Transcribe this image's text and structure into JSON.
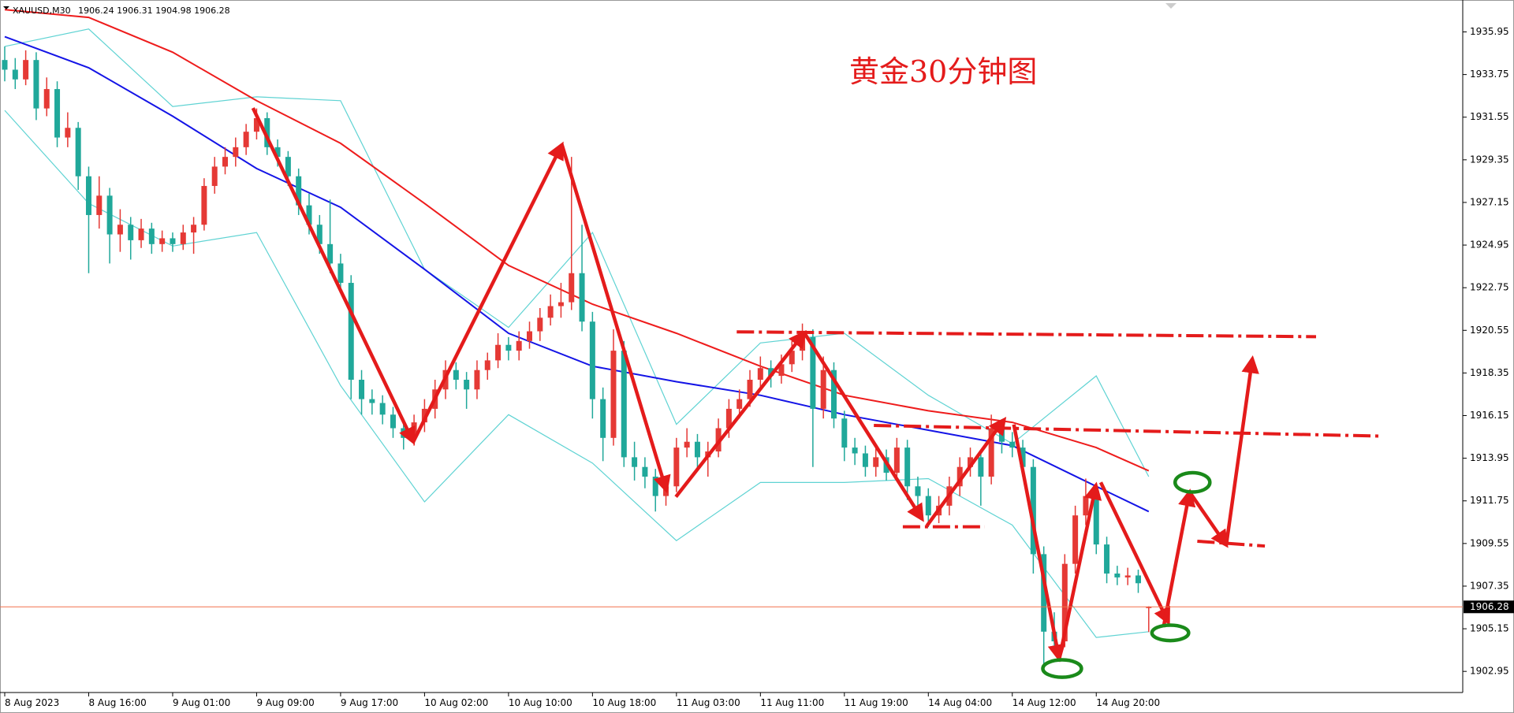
{
  "chart_data": {
    "type": "candlestick",
    "header": {
      "symbol": "XAUUSD,M30",
      "ohlc": [
        1906.24,
        1906.31,
        1904.98,
        1906.28
      ]
    },
    "title": "黄金30分钟图",
    "up_color": "#e53935",
    "down_color": "#20a89a",
    "ylim": [
      1901.86,
      1937.19
    ],
    "yticks": [
      1935.95,
      1933.75,
      1931.55,
      1929.35,
      1927.15,
      1924.95,
      1922.75,
      1920.55,
      1918.35,
      1916.15,
      1913.95,
      1911.75,
      1909.55,
      1907.35,
      1905.15,
      1902.95
    ],
    "x_labels": [
      "8 Aug 2023",
      "8 Aug 16:00",
      "9 Aug 01:00",
      "9 Aug 09:00",
      "9 Aug 17:00",
      "10 Aug 02:00",
      "10 Aug 10:00",
      "10 Aug 18:00",
      "11 Aug 03:00",
      "11 Aug 11:00",
      "11 Aug 19:00",
      "14 Aug 04:00",
      "14 Aug 12:00",
      "14 Aug 20:00"
    ],
    "current_price": 1906.28,
    "candles": [
      [
        1934.5,
        1935.2,
        1933.4,
        1934.0
      ],
      [
        1934.0,
        1934.6,
        1933.0,
        1933.5
      ],
      [
        1933.5,
        1935.0,
        1933.2,
        1934.5
      ],
      [
        1934.5,
        1934.9,
        1931.4,
        1932.0
      ],
      [
        1932.0,
        1933.6,
        1931.6,
        1933.0
      ],
      [
        1933.0,
        1933.4,
        1930.0,
        1930.5
      ],
      [
        1930.5,
        1931.8,
        1930.0,
        1931.0
      ],
      [
        1931.0,
        1931.3,
        1927.8,
        1928.5
      ],
      [
        1928.5,
        1929.0,
        1923.5,
        1926.5
      ],
      [
        1926.5,
        1928.5,
        1925.8,
        1927.5
      ],
      [
        1927.5,
        1927.9,
        1924.0,
        1925.5
      ],
      [
        1925.5,
        1926.8,
        1924.6,
        1926.0
      ],
      [
        1926.0,
        1926.4,
        1924.2,
        1925.2
      ],
      [
        1925.2,
        1926.3,
        1924.8,
        1925.8
      ],
      [
        1925.8,
        1926.1,
        1924.5,
        1925.0
      ],
      [
        1925.0,
        1925.7,
        1924.6,
        1925.3
      ],
      [
        1925.3,
        1925.6,
        1924.6,
        1925.0
      ],
      [
        1925.0,
        1926.0,
        1924.7,
        1925.6
      ],
      [
        1925.6,
        1926.4,
        1924.5,
        1926.0
      ],
      [
        1926.0,
        1928.4,
        1925.7,
        1928.0
      ],
      [
        1928.0,
        1929.5,
        1927.6,
        1929.0
      ],
      [
        1929.0,
        1930.0,
        1928.6,
        1929.5
      ],
      [
        1929.5,
        1930.5,
        1929.0,
        1930.0
      ],
      [
        1930.0,
        1931.2,
        1929.6,
        1930.8
      ],
      [
        1930.8,
        1932.0,
        1930.4,
        1931.5
      ],
      [
        1931.5,
        1931.8,
        1929.6,
        1930.0
      ],
      [
        1930.0,
        1930.4,
        1929.0,
        1929.5
      ],
      [
        1929.5,
        1929.8,
        1928.0,
        1928.5
      ],
      [
        1928.5,
        1928.9,
        1926.5,
        1927.0
      ],
      [
        1927.0,
        1927.6,
        1925.5,
        1926.0
      ],
      [
        1926.0,
        1926.5,
        1924.5,
        1925.0
      ],
      [
        1925.0,
        1927.3,
        1923.5,
        1924.0
      ],
      [
        1924.0,
        1924.5,
        1922.5,
        1923.0
      ],
      [
        1923.0,
        1923.4,
        1917.0,
        1918.0
      ],
      [
        1918.0,
        1918.5,
        1916.2,
        1917.0
      ],
      [
        1917.0,
        1917.5,
        1916.2,
        1916.8
      ],
      [
        1916.8,
        1917.2,
        1915.7,
        1916.2
      ],
      [
        1916.2,
        1916.6,
        1915.0,
        1915.5
      ],
      [
        1915.5,
        1916.0,
        1914.4,
        1915.0
      ],
      [
        1915.0,
        1916.2,
        1914.6,
        1915.8
      ],
      [
        1915.8,
        1917.0,
        1915.3,
        1916.5
      ],
      [
        1916.5,
        1918.0,
        1916.0,
        1917.5
      ],
      [
        1917.5,
        1919.0,
        1917.0,
        1918.5
      ],
      [
        1918.5,
        1918.9,
        1917.5,
        1918.0
      ],
      [
        1918.0,
        1918.4,
        1916.5,
        1917.5
      ],
      [
        1917.5,
        1919.0,
        1917.0,
        1918.5
      ],
      [
        1918.5,
        1919.4,
        1918.0,
        1919.0
      ],
      [
        1919.0,
        1920.4,
        1918.6,
        1919.8
      ],
      [
        1919.8,
        1920.2,
        1919.0,
        1919.5
      ],
      [
        1919.5,
        1920.5,
        1919.0,
        1920.0
      ],
      [
        1920.0,
        1921.0,
        1919.6,
        1920.5
      ],
      [
        1920.5,
        1921.7,
        1920.0,
        1921.2
      ],
      [
        1921.2,
        1922.4,
        1920.8,
        1921.8
      ],
      [
        1921.8,
        1923.0,
        1921.2,
        1922.0
      ],
      [
        1922.0,
        1929.5,
        1921.6,
        1923.5
      ],
      [
        1923.5,
        1926.0,
        1920.5,
        1921.0
      ],
      [
        1921.0,
        1921.5,
        1916.0,
        1917.0
      ],
      [
        1917.0,
        1917.6,
        1913.8,
        1915.0
      ],
      [
        1915.0,
        1920.6,
        1914.6,
        1919.5
      ],
      [
        1919.5,
        1920.0,
        1913.5,
        1914.0
      ],
      [
        1914.0,
        1914.8,
        1912.8,
        1913.5
      ],
      [
        1913.5,
        1914.0,
        1912.4,
        1913.0
      ],
      [
        1913.0,
        1913.4,
        1911.2,
        1912.0
      ],
      [
        1912.0,
        1913.0,
        1911.5,
        1912.5
      ],
      [
        1912.5,
        1915.0,
        1912.2,
        1914.5
      ],
      [
        1914.5,
        1915.5,
        1914.0,
        1914.8
      ],
      [
        1914.8,
        1915.2,
        1913.4,
        1914.0
      ],
      [
        1914.0,
        1914.8,
        1913.0,
        1914.3
      ],
      [
        1914.3,
        1916.0,
        1914.0,
        1915.5
      ],
      [
        1915.5,
        1917.0,
        1915.0,
        1916.5
      ],
      [
        1916.5,
        1917.5,
        1916.0,
        1917.0
      ],
      [
        1917.0,
        1918.5,
        1916.6,
        1918.0
      ],
      [
        1918.0,
        1919.2,
        1917.5,
        1918.6
      ],
      [
        1918.6,
        1919.0,
        1917.6,
        1918.2
      ],
      [
        1918.2,
        1919.3,
        1917.8,
        1918.8
      ],
      [
        1918.8,
        1920.0,
        1918.4,
        1919.5
      ],
      [
        1919.5,
        1920.9,
        1919.0,
        1920.2
      ],
      [
        1920.2,
        1920.6,
        1913.5,
        1916.5
      ],
      [
        1916.5,
        1919.2,
        1916.0,
        1918.5
      ],
      [
        1918.5,
        1918.9,
        1915.5,
        1916.0
      ],
      [
        1916.0,
        1916.4,
        1913.8,
        1914.5
      ],
      [
        1914.5,
        1915.0,
        1913.6,
        1914.2
      ],
      [
        1914.2,
        1914.6,
        1913.0,
        1913.5
      ],
      [
        1913.5,
        1914.5,
        1913.0,
        1914.0
      ],
      [
        1914.0,
        1914.4,
        1912.8,
        1913.2
      ],
      [
        1913.2,
        1915.0,
        1912.8,
        1914.5
      ],
      [
        1914.5,
        1914.9,
        1911.8,
        1912.5
      ],
      [
        1912.5,
        1913.0,
        1911.4,
        1912.0
      ],
      [
        1912.0,
        1912.4,
        1910.4,
        1911.0
      ],
      [
        1911.0,
        1912.0,
        1910.6,
        1911.5
      ],
      [
        1911.5,
        1913.0,
        1911.0,
        1912.5
      ],
      [
        1912.5,
        1914.0,
        1912.0,
        1913.5
      ],
      [
        1913.5,
        1914.5,
        1913.0,
        1914.0
      ],
      [
        1914.0,
        1914.4,
        1911.5,
        1913.0
      ],
      [
        1913.0,
        1916.2,
        1912.6,
        1915.5
      ],
      [
        1915.5,
        1915.9,
        1914.2,
        1914.8
      ],
      [
        1914.8,
        1915.3,
        1914.0,
        1914.5
      ],
      [
        1914.5,
        1914.9,
        1913.0,
        1913.5
      ],
      [
        1913.5,
        1913.9,
        1908.0,
        1909.0
      ],
      [
        1909.0,
        1909.4,
        1903.3,
        1905.0
      ],
      [
        1905.0,
        1906.0,
        1904.0,
        1904.5
      ],
      [
        1904.5,
        1909.0,
        1904.2,
        1908.5
      ],
      [
        1908.5,
        1911.5,
        1908.0,
        1911.0
      ],
      [
        1911.0,
        1912.9,
        1910.5,
        1912.0
      ],
      [
        1912.0,
        1912.4,
        1909.0,
        1909.5
      ],
      [
        1909.5,
        1909.9,
        1907.5,
        1908.0
      ],
      [
        1908.0,
        1908.4,
        1907.4,
        1907.8
      ],
      [
        1907.8,
        1908.3,
        1907.4,
        1907.9
      ],
      [
        1907.9,
        1908.2,
        1907.0,
        1907.5
      ],
      [
        1906.24,
        1906.31,
        1904.98,
        1906.28
      ]
    ],
    "lines": [
      {
        "color": "#5fd3d3",
        "x": [
          0,
          8,
          16,
          24,
          32,
          40,
          48,
          56,
          64,
          72,
          80,
          88,
          96,
          104,
          109
        ],
        "values": [
          1935.2,
          1936.1,
          1932.1,
          1932.6,
          1932.4,
          1923.7,
          1920.7,
          1925.6,
          1915.7,
          1919.9,
          1920.4,
          1917.2,
          1914.7,
          1918.2,
          1913.0
        ]
      },
      {
        "color": "#5fd3d3",
        "x": [
          0,
          8,
          16,
          24,
          32,
          40,
          48,
          56,
          64,
          72,
          80,
          88,
          96,
          104,
          109
        ],
        "values": [
          1931.9,
          1927.1,
          1924.9,
          1925.6,
          1917.7,
          1911.7,
          1916.2,
          1913.7,
          1909.7,
          1912.7,
          1912.7,
          1912.9,
          1910.5,
          1904.7,
          1905.0
        ]
      },
      {
        "color": "#1414e6",
        "x": [
          0,
          8,
          16,
          24,
          32,
          40,
          48,
          56,
          64,
          72,
          80,
          88,
          96,
          104,
          109
        ],
        "values": [
          1935.7,
          1934.1,
          1931.6,
          1928.9,
          1926.9,
          1923.7,
          1920.4,
          1918.7,
          1917.9,
          1917.2,
          1916.2,
          1915.4,
          1914.6,
          1912.5,
          1911.2
        ]
      },
      {
        "color": "#ee1c1c",
        "x": [
          0,
          8,
          16,
          24,
          32,
          40,
          48,
          56,
          64,
          72,
          80,
          88,
          96,
          104,
          109
        ],
        "values": [
          1937.1,
          1936.7,
          1934.9,
          1932.4,
          1930.2,
          1927.1,
          1923.9,
          1921.9,
          1920.4,
          1918.7,
          1917.2,
          1916.4,
          1915.8,
          1914.5,
          1913.3
        ]
      }
    ]
  }
}
